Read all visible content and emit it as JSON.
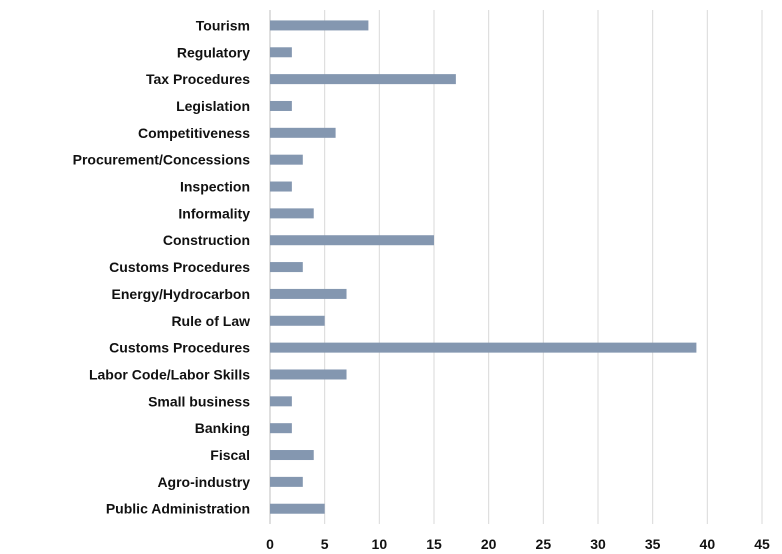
{
  "chart_data": {
    "type": "bar",
    "orientation": "horizontal",
    "categories": [
      "Tourism",
      "Regulatory",
      "Tax Procedures",
      "Legislation",
      "Competitiveness",
      "Procurement/Concessions",
      "Inspection",
      "Informality",
      "Construction",
      "Customs Procedures",
      "Energy/Hydrocarbon",
      "Rule of Law",
      "Customs Procedures",
      "Labor Code/Labor Skills",
      "Small business",
      "Banking",
      "Fiscal",
      "Agro-industry",
      "Public Administration"
    ],
    "values": [
      9,
      2,
      17,
      2,
      6,
      3,
      2,
      4,
      15,
      3,
      7,
      5,
      39,
      7,
      2,
      2,
      4,
      3,
      5
    ],
    "xticks": [
      "0",
      "5",
      "10",
      "15",
      "20",
      "25",
      "30",
      "35",
      "40",
      "45"
    ],
    "xlim": [
      0,
      45
    ],
    "grid": "vertical",
    "legend": "none",
    "title": "",
    "xlabel": "",
    "ylabel": "",
    "colors": {
      "bar": "#8497b0",
      "grid": "#d9d9d9"
    }
  }
}
